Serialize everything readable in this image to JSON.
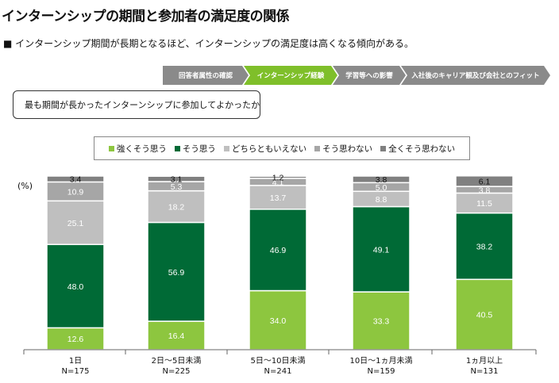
{
  "title": "インターンシップの期間と参加者の満足度の関係",
  "subtitle": "■ インターンシップ期間が長期となるほど、インターンシップの満足度は高くなる傾向がある。",
  "steps": [
    "回答者属性の確認",
    "インターンシップ経験",
    "学習等への影響",
    "入社後のキャリア観及び会社とのフィット"
  ],
  "active_step": 1,
  "question": "最も期間が長かったインターンシップに参加してよかったか",
  "colors": {
    "active_step": "#7fbf2a",
    "step": "#8a8a8a"
  },
  "chart_data": {
    "type": "bar",
    "stacked": true,
    "unit": "(%)",
    "categories": [
      "1日",
      "2日～5日未満",
      "5日～10日未満",
      "10日～1ヵ月未満",
      "1ヵ月以上"
    ],
    "n_labels": [
      "N=175",
      "N=225",
      "N=241",
      "N=159",
      "N=131"
    ],
    "legend_position": "top",
    "series": [
      {
        "name": "強くそう思う",
        "color": "#8dc63f",
        "values": [
          12.6,
          16.4,
          34.0,
          33.3,
          40.5
        ]
      },
      {
        "name": "そう思う",
        "color": "#006a36",
        "values": [
          48.0,
          56.9,
          46.9,
          49.1,
          38.2
        ]
      },
      {
        "name": "どちらともいえない",
        "color": "#bfbfbf",
        "values": [
          25.1,
          18.2,
          13.7,
          8.8,
          11.5
        ]
      },
      {
        "name": "そう思わない",
        "color": "#a6a6a6",
        "values": [
          10.9,
          5.3,
          4.1,
          5.0,
          3.8
        ]
      },
      {
        "name": "全くそう思わない",
        "color": "#808080",
        "values": [
          3.4,
          3.1,
          1.2,
          3.8,
          6.1
        ]
      }
    ],
    "ylim": [
      0,
      100
    ]
  }
}
